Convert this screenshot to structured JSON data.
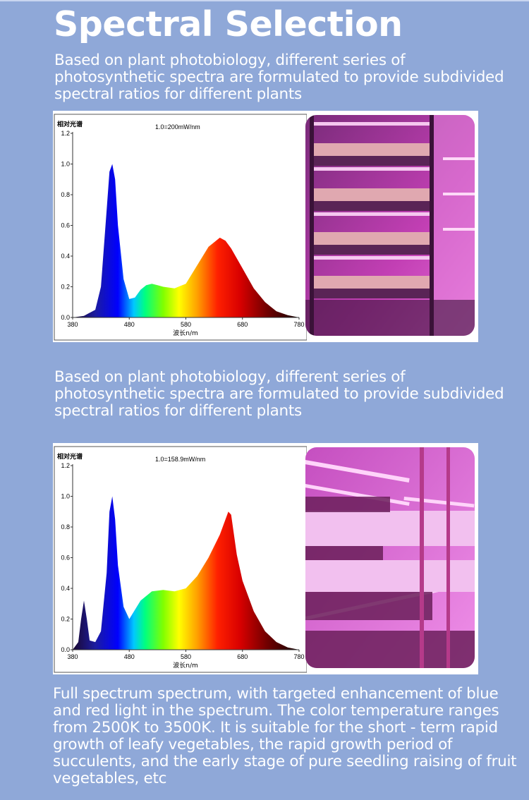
{
  "header": {
    "title": "Spectral Selection"
  },
  "intro_1": "Based on plant photobiology, different series of photosynthetic spectra are formulated to provide subdivided spectral ratios for different plants",
  "intro_2": "Based on plant photobiology, different series of photosynthetic spectra are formulated to provide subdivided spectral ratios for different plants",
  "footer_text": "Full spectrum spectrum, with targeted enhancement of blue and red light in the spectrum. The color temperature ranges from 2500K to 3500K. It is suitable for the short - term rapid growth of leafy vegetables, the rapid growth period of succulents, and the early stage of pure seedling raising of fruit vegetables, etc",
  "chart_data": [
    {
      "type": "area",
      "title": "",
      "ylabel": "相对光谱",
      "xlabel": "波长n/m",
      "annotation": "1.0=200mW/nm",
      "xlim": [
        380,
        780
      ],
      "ylim": [
        0,
        1.2
      ],
      "x_ticks": [
        "380",
        "480",
        "580",
        "680",
        "780"
      ],
      "y_ticks": [
        "0.0",
        "0.2",
        "0.4",
        "0.6",
        "0.8",
        "1.0",
        "1.2"
      ],
      "x": [
        380,
        400,
        420,
        430,
        440,
        445,
        450,
        455,
        460,
        470,
        480,
        490,
        500,
        510,
        520,
        530,
        540,
        560,
        580,
        600,
        620,
        640,
        650,
        660,
        680,
        700,
        720,
        740,
        760,
        780
      ],
      "values": [
        0.0,
        0.01,
        0.05,
        0.2,
        0.7,
        0.95,
        1.0,
        0.9,
        0.6,
        0.25,
        0.12,
        0.13,
        0.18,
        0.21,
        0.22,
        0.21,
        0.2,
        0.19,
        0.22,
        0.34,
        0.46,
        0.52,
        0.5,
        0.45,
        0.32,
        0.19,
        0.1,
        0.04,
        0.015,
        0.0
      ]
    },
    {
      "type": "area",
      "title": "",
      "ylabel": "相对光谱",
      "xlabel": "波长n/m",
      "annotation": "1.0=158.9mW/nm",
      "xlim": [
        380,
        780
      ],
      "ylim": [
        0,
        1.2
      ],
      "x_ticks": [
        "380",
        "480",
        "580",
        "680",
        "780"
      ],
      "y_ticks": [
        "0.0",
        "0.2",
        "0.4",
        "0.6",
        "0.8",
        "1.0",
        "1.2"
      ],
      "x": [
        380,
        390,
        395,
        400,
        405,
        410,
        420,
        430,
        440,
        445,
        450,
        455,
        460,
        470,
        480,
        490,
        500,
        520,
        540,
        560,
        580,
        600,
        620,
        640,
        650,
        655,
        660,
        670,
        680,
        700,
        720,
        740,
        760,
        780
      ],
      "values": [
        0.0,
        0.05,
        0.2,
        0.32,
        0.2,
        0.06,
        0.05,
        0.12,
        0.5,
        0.9,
        1.0,
        0.85,
        0.55,
        0.28,
        0.2,
        0.26,
        0.32,
        0.38,
        0.39,
        0.38,
        0.4,
        0.48,
        0.6,
        0.75,
        0.85,
        0.9,
        0.88,
        0.62,
        0.45,
        0.25,
        0.12,
        0.05,
        0.015,
        0.0
      ]
    }
  ]
}
